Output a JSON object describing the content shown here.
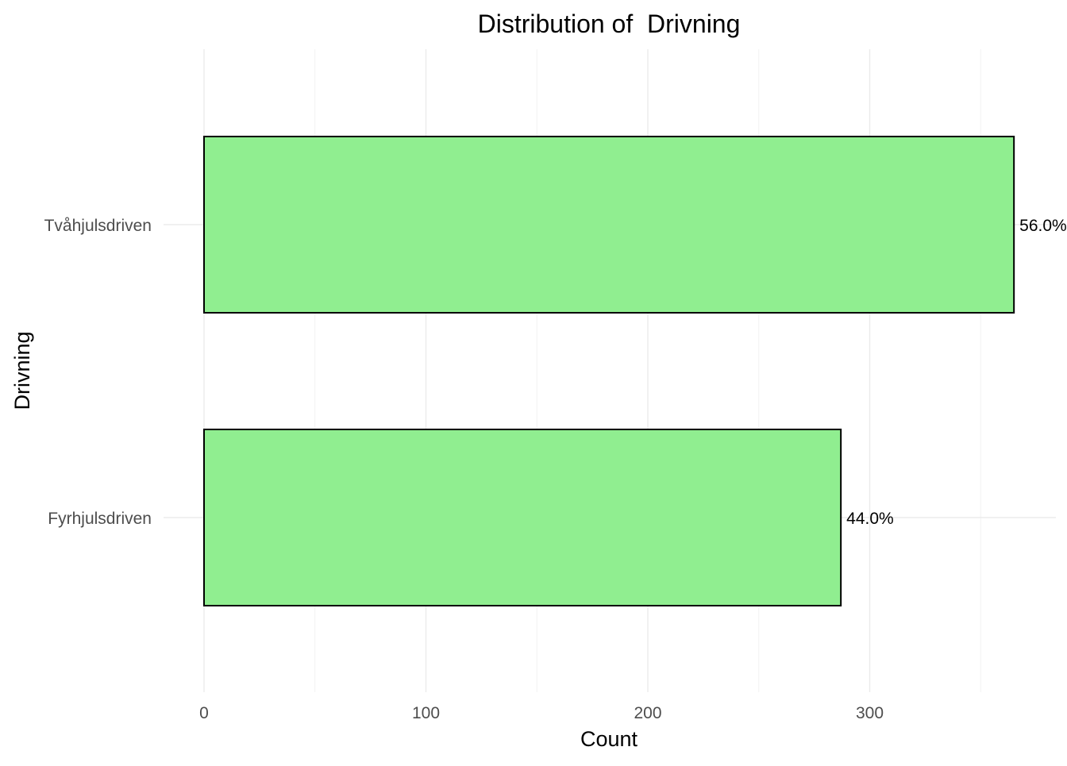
{
  "chart_data": {
    "type": "bar",
    "orientation": "horizontal",
    "title": "Distribution of  Drivning",
    "xlabel": "Count",
    "ylabel": "Drivning",
    "categories": [
      "Tvåhjulsdriven",
      "Fyrhjulsdriven"
    ],
    "values": [
      365,
      287
    ],
    "data_labels": [
      "56.0%",
      "44.0%"
    ],
    "xlim": [
      0,
      365
    ],
    "xticks": [
      0,
      100,
      200,
      300
    ],
    "xtick_labels": [
      "0",
      "100",
      "200",
      "300"
    ],
    "bar_color": "#90EE90",
    "bar_edge_color": "#000000",
    "grid": true,
    "legend": "none"
  }
}
